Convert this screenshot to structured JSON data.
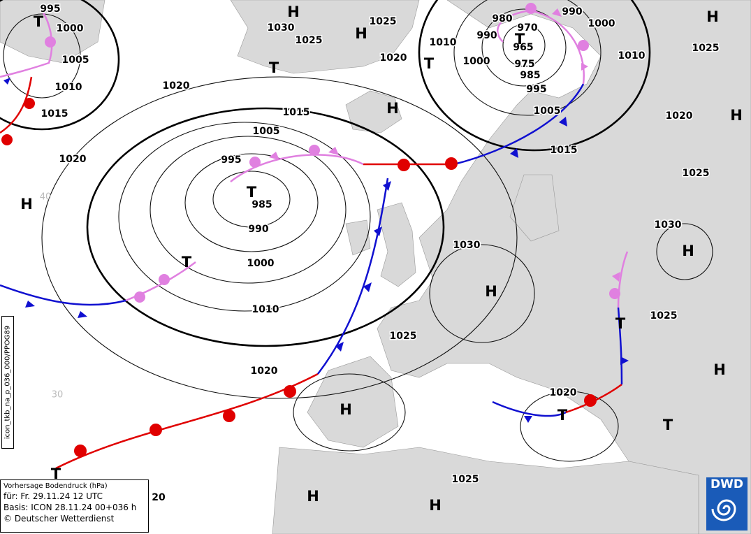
{
  "isobar_labels": [
    "995",
    "1000",
    "1005",
    "1010",
    "1015",
    "1020",
    "1020",
    "1030",
    "1025",
    "1025",
    "1020",
    "1010",
    "1000",
    "990",
    "980",
    "970",
    "965",
    "975",
    "985",
    "995",
    "990",
    "1000",
    "1010",
    "1005",
    "1015",
    "1020",
    "1025",
    "1025",
    "1015",
    "1005",
    "995",
    "985",
    "990",
    "1000",
    "1010",
    "1020",
    "1025",
    "1030",
    "1030",
    "1025",
    "1020",
    "1025",
    "20"
  ],
  "pressure_systems": [
    "T",
    "H",
    "H",
    "T",
    "T",
    "T",
    "H",
    "H",
    "H",
    "T",
    "H",
    "T",
    "H",
    "H",
    "T",
    "H",
    "H",
    "T",
    "T",
    "T",
    "H",
    "H"
  ],
  "grid_labels": [
    "40",
    "30"
  ],
  "product_code": "icon_tkb_na_p_036_000/PPOG89",
  "info": [
    "Vorhersage Bodendruck (hPa)",
    "für:  Fr. 29.11.24  12 UTC",
    "Basis: ICON  28.11.24 00+036 h",
    "© Deutscher Wetterdienst"
  ],
  "logo": "DWD"
}
